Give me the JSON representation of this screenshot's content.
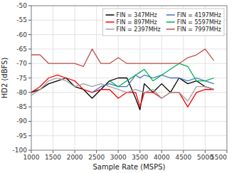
{
  "chart_data": {
    "type": "line",
    "xlabel": "Sample Rate (MSPS)",
    "ylabel": "HD2 (dBFS)",
    "xlim": [
      1000,
      5500
    ],
    "ylim": [
      -100,
      -50
    ],
    "xticks": [
      1000,
      1500,
      2000,
      2500,
      3000,
      3500,
      4000,
      4500,
      5000,
      5500
    ],
    "yticks": [
      -100,
      -95,
      -90,
      -85,
      -80,
      -75,
      -70,
      -65,
      -60,
      -55,
      -50
    ],
    "grid": true,
    "legend": "upper right",
    "series": [
      {
        "name": "FIN = 347MHz",
        "color": "#000000",
        "x": [
          1000,
          1200,
          1400,
          1600,
          1800,
          2000,
          2200,
          2400,
          2600,
          2800,
          3000,
          3200,
          3400,
          3500,
          3600,
          3800,
          4000,
          4200,
          4400,
          4600,
          4800,
          5000,
          5200
        ],
        "values": [
          -80,
          -79,
          -77,
          -76,
          -75,
          -78,
          -79,
          -82,
          -79,
          -76,
          -75,
          -75,
          -82,
          -86,
          -77,
          -80,
          -77,
          -80,
          -75,
          -77,
          -76,
          -78,
          -79
        ]
      },
      {
        "name": "FIN = 897MHz",
        "color": "#FF0000",
        "x": [
          1000,
          1200,
          1400,
          1600,
          1800,
          2000,
          2200,
          2400,
          2600,
          2800,
          3000,
          3200,
          3400,
          3500,
          3600,
          3800,
          4000,
          4200,
          4400,
          4600,
          4800,
          5000,
          5200
        ],
        "values": [
          -80,
          -78,
          -75,
          -74,
          -75,
          -76,
          -79,
          -80,
          -79,
          -79,
          -82,
          -80,
          -80,
          -85,
          -80,
          -80,
          -82,
          -80,
          -80,
          -85,
          -80,
          -79,
          -79
        ]
      },
      {
        "name": "FIN = 2397MHz",
        "color": "#A0A0A0",
        "x": [
          1000,
          1200,
          1400,
          1600,
          1800,
          2000,
          2200,
          2400,
          2600,
          2800,
          3000,
          3200,
          3400,
          3600,
          3800,
          4000,
          4200,
          4400,
          4600,
          4800,
          5000,
          5200
        ],
        "values": [
          -81,
          -79,
          -76,
          -75,
          -76,
          -78,
          -77,
          -78,
          -77,
          -78,
          -79,
          -80,
          -79,
          -80,
          -79,
          -82,
          -80,
          -80,
          -83,
          -78,
          -78,
          -79
        ]
      },
      {
        "name": "FIN = 4197MHz",
        "color": "#4472C4",
        "x": [
          2400,
          2600,
          2800,
          3000,
          3200,
          3400,
          3500,
          3600,
          3800,
          4000,
          4200,
          4400,
          4600,
          4800,
          5000,
          5200
        ],
        "values": [
          -80,
          -78,
          -77,
          -78,
          -78,
          -74,
          -75,
          -74,
          -75,
          -74,
          -75,
          -75,
          -76,
          -75,
          -76,
          -77
        ]
      },
      {
        "name": "FIN = 5597MHz",
        "color": "#00B050",
        "x": [
          2800,
          3000,
          3200,
          3400,
          3500,
          3600,
          3800,
          4000,
          4200,
          4400,
          4600,
          4800,
          5000,
          5200
        ],
        "values": [
          -76,
          -78,
          -76,
          -74,
          -73,
          -72,
          -76,
          -74,
          -72,
          -70,
          -71,
          -76,
          -76,
          -75
        ]
      },
      {
        "name": "FIN = 7997MHz",
        "color": "#C0504D",
        "x": [
          1000,
          1200,
          1400,
          1600,
          1800,
          2000,
          2200,
          2400,
          2600,
          2800,
          3000,
          3200,
          3400,
          3600,
          3800,
          4000,
          4200,
          4400,
          4600,
          4800,
          5000,
          5200
        ],
        "values": [
          -67,
          -67,
          -70,
          -70,
          -70,
          -70,
          -71,
          -65,
          -70,
          -70,
          -68,
          -70,
          -70,
          -70,
          -70,
          -70,
          -70,
          -70,
          -68,
          -67,
          -65,
          -69
        ]
      }
    ]
  }
}
